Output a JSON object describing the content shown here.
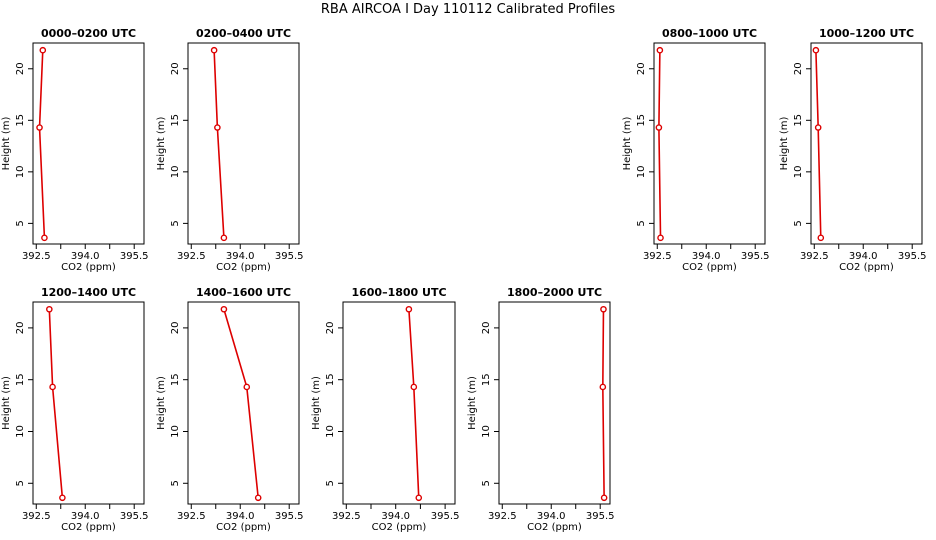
{
  "page": {
    "title": "RBA AIRCOA I  Day 110112  Calibrated Profiles"
  },
  "colors": {
    "series": "#dd0000",
    "axis": "#000000"
  },
  "chart_data": [
    {
      "type": "line",
      "title": "0000–0200 UTC",
      "xlabel": "CO2 (ppm)",
      "ylabel": "Height (m)",
      "xlim": [
        392.4,
        395.8
      ],
      "ylim": [
        3,
        22.5
      ],
      "x_ticks": [
        "392.5",
        "394.0",
        "395.5"
      ],
      "y_ticks": [
        "5",
        "10",
        "15",
        "20"
      ],
      "series": [
        {
          "x": [
            392.7,
            392.6,
            392.75
          ],
          "y": [
            21.8,
            14.3,
            3.6
          ]
        }
      ]
    },
    {
      "type": "line",
      "title": "0200–0400 UTC",
      "xlabel": "CO2 (ppm)",
      "ylabel": "Height (m)",
      "xlim": [
        392.4,
        395.8
      ],
      "ylim": [
        3,
        22.5
      ],
      "x_ticks": [
        "392.5",
        "394.0",
        "395.5"
      ],
      "y_ticks": [
        "5",
        "10",
        "15",
        "20"
      ],
      "series": [
        {
          "x": [
            393.2,
            393.3,
            393.5
          ],
          "y": [
            21.8,
            14.3,
            3.6
          ]
        }
      ]
    },
    {
      "type": "line",
      "title": "0800–1000 UTC",
      "xlabel": "CO2 (ppm)",
      "ylabel": "Height (m)",
      "xlim": [
        392.4,
        395.8
      ],
      "ylim": [
        3,
        22.5
      ],
      "x_ticks": [
        "392.5",
        "394.0",
        "395.5"
      ],
      "y_ticks": [
        "5",
        "10",
        "15",
        "20"
      ],
      "series": [
        {
          "x": [
            392.58,
            392.55,
            392.6
          ],
          "y": [
            21.8,
            14.3,
            3.6
          ]
        }
      ]
    },
    {
      "type": "line",
      "title": "1000–1200 UTC",
      "xlabel": "CO2 (ppm)",
      "ylabel": "Height (m)",
      "xlim": [
        392.4,
        395.8
      ],
      "ylim": [
        3,
        22.5
      ],
      "x_ticks": [
        "392.5",
        "394.0",
        "395.5"
      ],
      "y_ticks": [
        "5",
        "10",
        "15",
        "20"
      ],
      "series": [
        {
          "x": [
            392.55,
            392.62,
            392.7
          ],
          "y": [
            21.8,
            14.3,
            3.6
          ]
        }
      ]
    },
    {
      "type": "line",
      "title": "1200–1400 UTC",
      "xlabel": "CO2 (ppm)",
      "ylabel": "Height (m)",
      "xlim": [
        392.4,
        395.8
      ],
      "ylim": [
        3,
        22.5
      ],
      "x_ticks": [
        "392.5",
        "394.0",
        "395.5"
      ],
      "y_ticks": [
        "5",
        "10",
        "15",
        "20"
      ],
      "series": [
        {
          "x": [
            392.9,
            393.0,
            393.3
          ],
          "y": [
            21.8,
            14.3,
            3.6
          ]
        }
      ]
    },
    {
      "type": "line",
      "title": "1400–1600 UTC",
      "xlabel": "CO2 (ppm)",
      "ylabel": "Height (m)",
      "xlim": [
        392.4,
        395.8
      ],
      "ylim": [
        3,
        22.5
      ],
      "x_ticks": [
        "392.5",
        "394.0",
        "395.5"
      ],
      "y_ticks": [
        "5",
        "10",
        "15",
        "20"
      ],
      "series": [
        {
          "x": [
            393.5,
            394.2,
            394.55
          ],
          "y": [
            21.8,
            14.3,
            3.6
          ]
        }
      ]
    },
    {
      "type": "line",
      "title": "1600–1800 UTC",
      "xlabel": "CO2 (ppm)",
      "ylabel": "Height (m)",
      "xlim": [
        392.4,
        395.8
      ],
      "ylim": [
        3,
        22.5
      ],
      "x_ticks": [
        "392.5",
        "394.0",
        "395.5"
      ],
      "y_ticks": [
        "5",
        "10",
        "15",
        "20"
      ],
      "series": [
        {
          "x": [
            394.4,
            394.55,
            394.7
          ],
          "y": [
            21.8,
            14.3,
            3.6
          ]
        }
      ]
    },
    {
      "type": "line",
      "title": "1800–2000 UTC",
      "xlabel": "CO2 (ppm)",
      "ylabel": "Height (m)",
      "xlim": [
        392.4,
        395.8
      ],
      "ylim": [
        3,
        22.5
      ],
      "x_ticks": [
        "392.5",
        "394.0",
        "395.5"
      ],
      "y_ticks": [
        "5",
        "10",
        "15",
        "20"
      ],
      "series": [
        {
          "x": [
            395.6,
            395.58,
            395.62
          ],
          "y": [
            21.8,
            14.3,
            3.6
          ]
        }
      ]
    }
  ]
}
